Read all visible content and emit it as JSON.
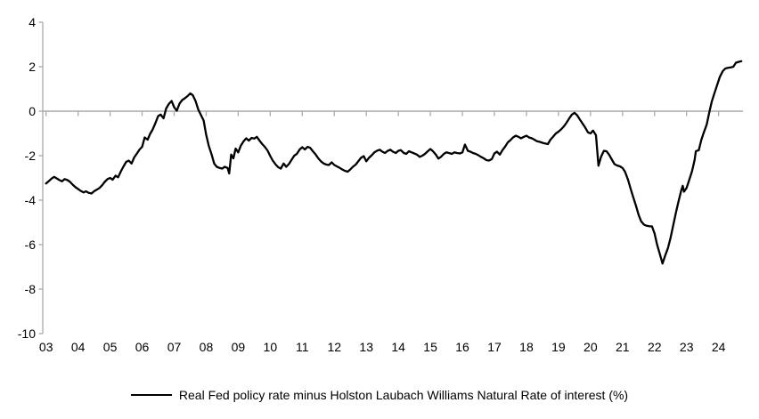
{
  "chart_data": {
    "type": "line",
    "title": "",
    "xlabel": "",
    "ylabel": "",
    "ylim": [
      -10,
      4
    ],
    "xlim": [
      2003.0,
      2024.75
    ],
    "y_ticks": [
      4,
      2,
      0,
      -2,
      -4,
      -6,
      -8,
      -10
    ],
    "x_tick_labels": [
      "03",
      "04",
      "05",
      "06",
      "07",
      "08",
      "09",
      "10",
      "11",
      "12",
      "13",
      "14",
      "15",
      "16",
      "17",
      "18",
      "19",
      "20",
      "21",
      "22",
      "23",
      "24"
    ],
    "grid": "none",
    "zero_line": true,
    "legend_position": "bottom",
    "legend": [
      {
        "label": "Real Fed policy rate minus Holston Laubach Williams Natural Rate of interest (%)",
        "color": "#000000"
      }
    ],
    "series": [
      {
        "name": "Real Fed policy rate minus Holston Laubach Williams Natural Rate of interest (%)",
        "color": "#000000",
        "points": [
          [
            2003.0,
            -3.25
          ],
          [
            2003.08,
            -3.15
          ],
          [
            2003.17,
            -3.03
          ],
          [
            2003.25,
            -2.95
          ],
          [
            2003.33,
            -3.02
          ],
          [
            2003.42,
            -3.1
          ],
          [
            2003.5,
            -3.15
          ],
          [
            2003.58,
            -3.05
          ],
          [
            2003.67,
            -3.1
          ],
          [
            2003.75,
            -3.18
          ],
          [
            2003.83,
            -3.3
          ],
          [
            2003.92,
            -3.42
          ],
          [
            2004.0,
            -3.5
          ],
          [
            2004.08,
            -3.58
          ],
          [
            2004.17,
            -3.65
          ],
          [
            2004.25,
            -3.6
          ],
          [
            2004.33,
            -3.67
          ],
          [
            2004.42,
            -3.7
          ],
          [
            2004.5,
            -3.6
          ],
          [
            2004.58,
            -3.53
          ],
          [
            2004.67,
            -3.45
          ],
          [
            2004.75,
            -3.33
          ],
          [
            2004.83,
            -3.18
          ],
          [
            2004.92,
            -3.05
          ],
          [
            2005.0,
            -3.0
          ],
          [
            2005.08,
            -3.08
          ],
          [
            2005.17,
            -2.9
          ],
          [
            2005.25,
            -2.97
          ],
          [
            2005.33,
            -2.72
          ],
          [
            2005.42,
            -2.48
          ],
          [
            2005.5,
            -2.28
          ],
          [
            2005.58,
            -2.22
          ],
          [
            2005.67,
            -2.35
          ],
          [
            2005.75,
            -2.08
          ],
          [
            2005.83,
            -1.92
          ],
          [
            2005.92,
            -1.72
          ],
          [
            2006.0,
            -1.6
          ],
          [
            2006.08,
            -1.18
          ],
          [
            2006.17,
            -1.28
          ],
          [
            2006.25,
            -1.02
          ],
          [
            2006.33,
            -0.82
          ],
          [
            2006.42,
            -0.52
          ],
          [
            2006.5,
            -0.22
          ],
          [
            2006.58,
            -0.15
          ],
          [
            2006.67,
            -0.32
          ],
          [
            2006.75,
            0.12
          ],
          [
            2006.83,
            0.32
          ],
          [
            2006.92,
            0.46
          ],
          [
            2007.0,
            0.18
          ],
          [
            2007.08,
            0.02
          ],
          [
            2007.17,
            0.35
          ],
          [
            2007.25,
            0.5
          ],
          [
            2007.33,
            0.58
          ],
          [
            2007.42,
            0.68
          ],
          [
            2007.5,
            0.8
          ],
          [
            2007.58,
            0.72
          ],
          [
            2007.67,
            0.45
          ],
          [
            2007.75,
            0.08
          ],
          [
            2007.83,
            -0.15
          ],
          [
            2007.92,
            -0.42
          ],
          [
            2008.0,
            -1.05
          ],
          [
            2008.08,
            -1.55
          ],
          [
            2008.17,
            -1.95
          ],
          [
            2008.25,
            -2.35
          ],
          [
            2008.33,
            -2.5
          ],
          [
            2008.42,
            -2.55
          ],
          [
            2008.5,
            -2.58
          ],
          [
            2008.58,
            -2.5
          ],
          [
            2008.67,
            -2.55
          ],
          [
            2008.72,
            -2.8
          ],
          [
            2008.78,
            -1.95
          ],
          [
            2008.85,
            -2.12
          ],
          [
            2008.92,
            -1.68
          ],
          [
            2009.0,
            -1.85
          ],
          [
            2009.08,
            -1.55
          ],
          [
            2009.17,
            -1.35
          ],
          [
            2009.25,
            -1.22
          ],
          [
            2009.33,
            -1.32
          ],
          [
            2009.42,
            -1.2
          ],
          [
            2009.5,
            -1.23
          ],
          [
            2009.58,
            -1.15
          ],
          [
            2009.67,
            -1.33
          ],
          [
            2009.75,
            -1.48
          ],
          [
            2009.83,
            -1.6
          ],
          [
            2009.92,
            -1.78
          ],
          [
            2010.0,
            -2.02
          ],
          [
            2010.08,
            -2.22
          ],
          [
            2010.17,
            -2.4
          ],
          [
            2010.25,
            -2.52
          ],
          [
            2010.33,
            -2.58
          ],
          [
            2010.42,
            -2.35
          ],
          [
            2010.5,
            -2.5
          ],
          [
            2010.58,
            -2.38
          ],
          [
            2010.67,
            -2.18
          ],
          [
            2010.75,
            -2.0
          ],
          [
            2010.83,
            -1.92
          ],
          [
            2010.92,
            -1.72
          ],
          [
            2011.0,
            -1.62
          ],
          [
            2011.08,
            -1.72
          ],
          [
            2011.17,
            -1.6
          ],
          [
            2011.25,
            -1.65
          ],
          [
            2011.33,
            -1.8
          ],
          [
            2011.42,
            -1.95
          ],
          [
            2011.5,
            -2.12
          ],
          [
            2011.58,
            -2.25
          ],
          [
            2011.67,
            -2.35
          ],
          [
            2011.75,
            -2.4
          ],
          [
            2011.83,
            -2.42
          ],
          [
            2011.92,
            -2.3
          ],
          [
            2012.0,
            -2.42
          ],
          [
            2012.08,
            -2.48
          ],
          [
            2012.17,
            -2.55
          ],
          [
            2012.25,
            -2.62
          ],
          [
            2012.33,
            -2.68
          ],
          [
            2012.42,
            -2.72
          ],
          [
            2012.5,
            -2.62
          ],
          [
            2012.58,
            -2.5
          ],
          [
            2012.67,
            -2.4
          ],
          [
            2012.75,
            -2.25
          ],
          [
            2012.83,
            -2.1
          ],
          [
            2012.92,
            -2.02
          ],
          [
            2013.0,
            -2.25
          ],
          [
            2013.08,
            -2.1
          ],
          [
            2013.17,
            -1.98
          ],
          [
            2013.25,
            -1.85
          ],
          [
            2013.33,
            -1.78
          ],
          [
            2013.42,
            -1.73
          ],
          [
            2013.5,
            -1.82
          ],
          [
            2013.58,
            -1.88
          ],
          [
            2013.67,
            -1.78
          ],
          [
            2013.75,
            -1.73
          ],
          [
            2013.83,
            -1.82
          ],
          [
            2013.92,
            -1.88
          ],
          [
            2014.0,
            -1.78
          ],
          [
            2014.08,
            -1.75
          ],
          [
            2014.17,
            -1.88
          ],
          [
            2014.25,
            -1.92
          ],
          [
            2014.33,
            -1.8
          ],
          [
            2014.42,
            -1.85
          ],
          [
            2014.5,
            -1.9
          ],
          [
            2014.58,
            -1.95
          ],
          [
            2014.67,
            -2.05
          ],
          [
            2014.75,
            -2.0
          ],
          [
            2014.83,
            -1.92
          ],
          [
            2014.92,
            -1.8
          ],
          [
            2015.0,
            -1.7
          ],
          [
            2015.08,
            -1.8
          ],
          [
            2015.17,
            -1.95
          ],
          [
            2015.25,
            -2.13
          ],
          [
            2015.33,
            -2.05
          ],
          [
            2015.42,
            -1.92
          ],
          [
            2015.5,
            -1.85
          ],
          [
            2015.58,
            -1.88
          ],
          [
            2015.67,
            -1.92
          ],
          [
            2015.75,
            -1.85
          ],
          [
            2015.83,
            -1.88
          ],
          [
            2015.92,
            -1.9
          ],
          [
            2016.0,
            -1.85
          ],
          [
            2016.08,
            -1.5
          ],
          [
            2016.17,
            -1.78
          ],
          [
            2016.25,
            -1.82
          ],
          [
            2016.33,
            -1.88
          ],
          [
            2016.42,
            -1.92
          ],
          [
            2016.5,
            -1.98
          ],
          [
            2016.58,
            -2.05
          ],
          [
            2016.67,
            -2.12
          ],
          [
            2016.75,
            -2.2
          ],
          [
            2016.83,
            -2.22
          ],
          [
            2016.92,
            -2.15
          ],
          [
            2017.0,
            -1.9
          ],
          [
            2017.08,
            -1.82
          ],
          [
            2017.17,
            -1.95
          ],
          [
            2017.25,
            -1.75
          ],
          [
            2017.33,
            -1.6
          ],
          [
            2017.42,
            -1.4
          ],
          [
            2017.5,
            -1.3
          ],
          [
            2017.58,
            -1.18
          ],
          [
            2017.67,
            -1.1
          ],
          [
            2017.75,
            -1.15
          ],
          [
            2017.83,
            -1.22
          ],
          [
            2017.92,
            -1.15
          ],
          [
            2018.0,
            -1.1
          ],
          [
            2018.08,
            -1.18
          ],
          [
            2018.17,
            -1.22
          ],
          [
            2018.25,
            -1.28
          ],
          [
            2018.33,
            -1.35
          ],
          [
            2018.42,
            -1.38
          ],
          [
            2018.5,
            -1.42
          ],
          [
            2018.58,
            -1.45
          ],
          [
            2018.67,
            -1.48
          ],
          [
            2018.75,
            -1.28
          ],
          [
            2018.83,
            -1.15
          ],
          [
            2018.92,
            -1.0
          ],
          [
            2019.0,
            -0.92
          ],
          [
            2019.08,
            -0.82
          ],
          [
            2019.17,
            -0.68
          ],
          [
            2019.25,
            -0.52
          ],
          [
            2019.33,
            -0.33
          ],
          [
            2019.42,
            -0.15
          ],
          [
            2019.5,
            -0.07
          ],
          [
            2019.58,
            -0.18
          ],
          [
            2019.67,
            -0.38
          ],
          [
            2019.75,
            -0.55
          ],
          [
            2019.83,
            -0.72
          ],
          [
            2019.92,
            -0.95
          ],
          [
            2020.0,
            -1.0
          ],
          [
            2020.08,
            -0.87
          ],
          [
            2020.17,
            -1.08
          ],
          [
            2020.25,
            -2.45
          ],
          [
            2020.33,
            -2.05
          ],
          [
            2020.42,
            -1.78
          ],
          [
            2020.5,
            -1.8
          ],
          [
            2020.58,
            -1.95
          ],
          [
            2020.67,
            -2.18
          ],
          [
            2020.75,
            -2.38
          ],
          [
            2020.83,
            -2.44
          ],
          [
            2020.92,
            -2.48
          ],
          [
            2021.0,
            -2.55
          ],
          [
            2021.08,
            -2.73
          ],
          [
            2021.17,
            -3.07
          ],
          [
            2021.25,
            -3.47
          ],
          [
            2021.33,
            -3.85
          ],
          [
            2021.42,
            -4.25
          ],
          [
            2021.5,
            -4.65
          ],
          [
            2021.58,
            -4.95
          ],
          [
            2021.67,
            -5.1
          ],
          [
            2021.75,
            -5.15
          ],
          [
            2021.83,
            -5.17
          ],
          [
            2021.92,
            -5.18
          ],
          [
            2022.0,
            -5.5
          ],
          [
            2022.08,
            -6.0
          ],
          [
            2022.17,
            -6.45
          ],
          [
            2022.25,
            -6.85
          ],
          [
            2022.33,
            -6.5
          ],
          [
            2022.42,
            -6.15
          ],
          [
            2022.5,
            -5.7
          ],
          [
            2022.58,
            -5.15
          ],
          [
            2022.67,
            -4.55
          ],
          [
            2022.75,
            -4.05
          ],
          [
            2022.83,
            -3.58
          ],
          [
            2022.88,
            -3.35
          ],
          [
            2022.92,
            -3.62
          ],
          [
            2023.0,
            -3.45
          ],
          [
            2023.08,
            -3.1
          ],
          [
            2023.17,
            -2.7
          ],
          [
            2023.25,
            -2.2
          ],
          [
            2023.29,
            -1.8
          ],
          [
            2023.38,
            -1.75
          ],
          [
            2023.46,
            -1.3
          ],
          [
            2023.54,
            -0.95
          ],
          [
            2023.63,
            -0.6
          ],
          [
            2023.71,
            -0.05
          ],
          [
            2023.79,
            0.45
          ],
          [
            2023.88,
            0.85
          ],
          [
            2023.96,
            1.2
          ],
          [
            2024.04,
            1.55
          ],
          [
            2024.13,
            1.8
          ],
          [
            2024.21,
            1.92
          ],
          [
            2024.29,
            1.95
          ],
          [
            2024.38,
            1.97
          ],
          [
            2024.46,
            2.0
          ],
          [
            2024.54,
            2.18
          ],
          [
            2024.63,
            2.22
          ],
          [
            2024.71,
            2.25
          ]
        ]
      }
    ]
  },
  "styles": {
    "background": "#FFFFFF",
    "axis_color": "#A9A9A9",
    "line_color": "#000000",
    "text_color": "#000000"
  }
}
